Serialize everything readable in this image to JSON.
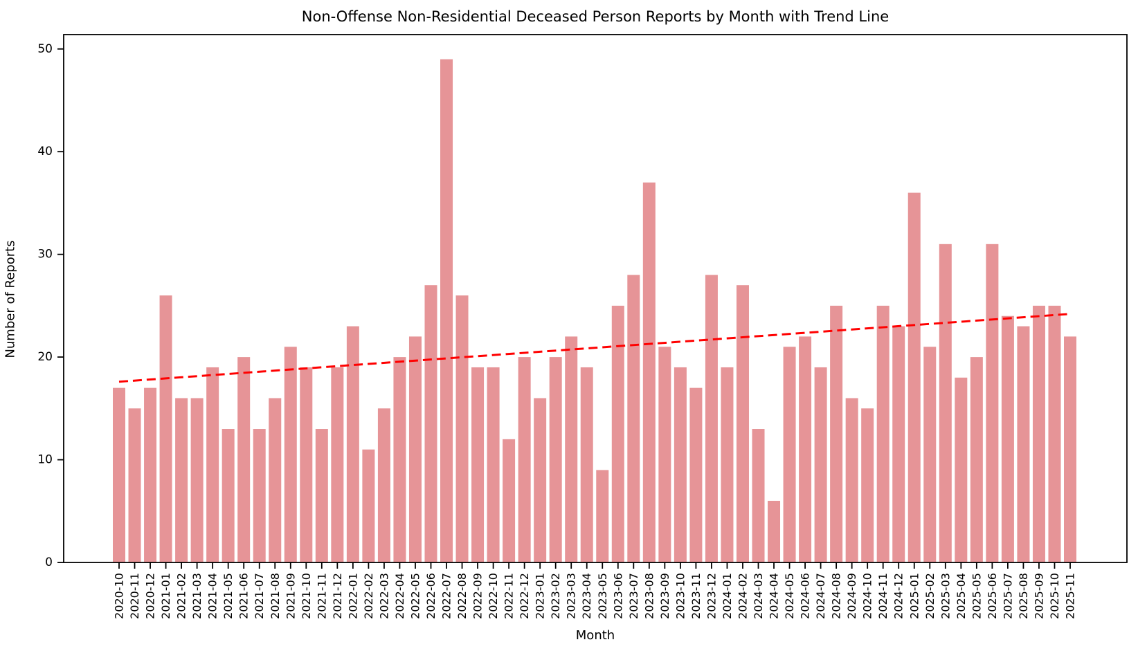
{
  "figure": {
    "background": "#FFFFFF"
  },
  "chart_data": {
    "type": "bar",
    "title": "Non-Offense Non-Residential Deceased Person Reports by Month with Trend Line",
    "xlabel": "Month",
    "ylabel": "Number of Reports",
    "categories": [
      "2020-10",
      "2020-11",
      "2020-12",
      "2021-01",
      "2021-02",
      "2021-03",
      "2021-04",
      "2021-05",
      "2021-06",
      "2021-07",
      "2021-08",
      "2021-09",
      "2021-10",
      "2021-11",
      "2021-12",
      "2022-01",
      "2022-02",
      "2022-03",
      "2022-04",
      "2022-05",
      "2022-06",
      "2022-07",
      "2022-08",
      "2022-09",
      "2022-10",
      "2022-11",
      "2022-12",
      "2023-01",
      "2023-02",
      "2023-03",
      "2023-04",
      "2023-05",
      "2023-06",
      "2023-07",
      "2023-08",
      "2023-09",
      "2023-10",
      "2023-11",
      "2023-12",
      "2024-01",
      "2024-02",
      "2024-03",
      "2024-04",
      "2024-05",
      "2024-06",
      "2024-07",
      "2024-08",
      "2024-09",
      "2024-10",
      "2024-11",
      "2024-12",
      "2025-01",
      "2025-02",
      "2025-03",
      "2025-04",
      "2025-05",
      "2025-06",
      "2025-07",
      "2025-08",
      "2025-09",
      "2025-10",
      "2025-11"
    ],
    "values": [
      17,
      15,
      17,
      26,
      16,
      16,
      19,
      13,
      20,
      13,
      16,
      21,
      19,
      13,
      19,
      23,
      11,
      15,
      20,
      22,
      27,
      49,
      26,
      19,
      19,
      12,
      20,
      16,
      20,
      22,
      19,
      9,
      25,
      28,
      37,
      21,
      19,
      17,
      28,
      19,
      27,
      13,
      6,
      21,
      22,
      19,
      25,
      16,
      15,
      25,
      23,
      36,
      21,
      31,
      18,
      20,
      31,
      24,
      23,
      25,
      25,
      22
    ],
    "ylim": [
      0,
      51.4
    ],
    "yticks": [
      0,
      10,
      20,
      30,
      40,
      50
    ],
    "grid": false,
    "legend": "none",
    "bar_color": "#E69497",
    "axis_color": "#000000",
    "trend_line": {
      "type": "linear",
      "start_value": 17.6,
      "end_value": 24.2,
      "color": "#FF0000",
      "style": "dashed"
    }
  }
}
